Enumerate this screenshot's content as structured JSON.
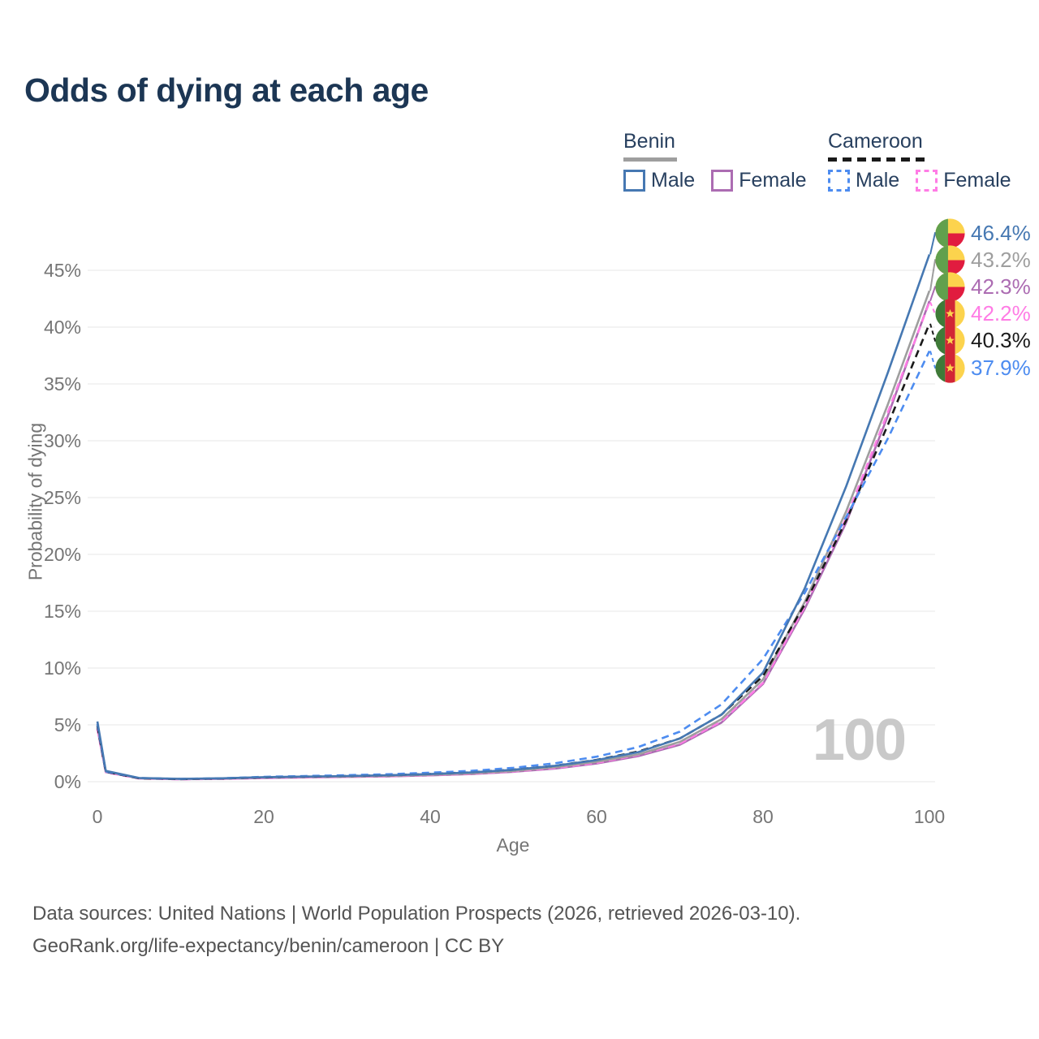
{
  "title": "Odds of dying at each age",
  "watermark": "100",
  "legend": {
    "benin": {
      "label": "Benin",
      "male": "Male",
      "female": "Female"
    },
    "cameroon": {
      "label": "Cameroon",
      "male": "Male",
      "female": "Female"
    }
  },
  "axes": {
    "x": {
      "label": "Age",
      "ticks": [
        0,
        20,
        40,
        60,
        80,
        100
      ],
      "range": [
        0,
        100
      ]
    },
    "y": {
      "label": "Probability of dying",
      "ticks": [
        "0%",
        "5%",
        "10%",
        "15%",
        "20%",
        "25%",
        "30%",
        "35%",
        "40%",
        "45%"
      ],
      "tick_values": [
        0,
        5,
        10,
        15,
        20,
        25,
        30,
        35,
        40,
        45
      ],
      "range": [
        0,
        48
      ]
    }
  },
  "footer": {
    "line1": "Data sources: United Nations | World Population Prospects (2026, retrieved 2026-03-10).",
    "line2": "GeoRank.org/life-expectancy/benin/cameroon | CC BY"
  },
  "colors": {
    "title_text": "#1c3654",
    "legend_text": "#28405f",
    "axis_text": "#757575",
    "gridline": "#e7e7e7",
    "watermark": "#c9c9c9",
    "footer_text": "#545454",
    "flag_benin": {
      "green": "#61a04d",
      "yellow": "#fcd34d",
      "red": "#e11c3f"
    },
    "flag_cameroon": {
      "green": "#3f7a38",
      "red": "#d22635",
      "yellow": "#fcd34d",
      "star": "#fcd34d"
    }
  },
  "chart_data": {
    "type": "line",
    "title": "Odds of dying at each age",
    "xlabel": "Age",
    "ylabel": "Probability of dying",
    "xlim": [
      0,
      100
    ],
    "ylim": [
      0,
      48
    ],
    "grid": "horizontal",
    "legend_position": "top-right",
    "x": [
      0,
      1,
      5,
      10,
      15,
      20,
      25,
      30,
      35,
      40,
      45,
      50,
      55,
      60,
      65,
      70,
      75,
      80,
      85,
      90,
      95,
      100
    ],
    "series": [
      {
        "id": "benin-male",
        "name": "Benin Male",
        "country": "Benin",
        "group": "Male",
        "style": "solid",
        "color": "#4678b2",
        "flag": "benin",
        "end_label": "46.4%",
        "end_value": 46.4,
        "values": [
          5.3,
          0.95,
          0.33,
          0.25,
          0.3,
          0.4,
          0.45,
          0.5,
          0.57,
          0.67,
          0.82,
          1.05,
          1.4,
          1.9,
          2.6,
          3.8,
          5.9,
          9.6,
          17.0,
          26.0,
          36.0,
          46.4
        ]
      },
      {
        "id": "benin-all",
        "name": "Benin All",
        "country": "Benin",
        "group": "All",
        "style": "solid",
        "color": "#9e9e9e",
        "flag": "benin",
        "end_label": "43.2%",
        "end_value": 43.2,
        "values": [
          5.0,
          0.9,
          0.31,
          0.24,
          0.28,
          0.37,
          0.42,
          0.46,
          0.52,
          0.61,
          0.74,
          0.95,
          1.28,
          1.75,
          2.4,
          3.5,
          5.5,
          9.0,
          15.8,
          23.8,
          33.2,
          43.2
        ]
      },
      {
        "id": "benin-female",
        "name": "Benin Female",
        "country": "Benin",
        "group": "Female",
        "style": "solid",
        "color": "#ac6cb2",
        "flag": "benin",
        "end_label": "42.3%",
        "end_value": 42.3,
        "values": [
          4.7,
          0.85,
          0.29,
          0.22,
          0.26,
          0.33,
          0.38,
          0.42,
          0.47,
          0.56,
          0.67,
          0.87,
          1.16,
          1.6,
          2.25,
          3.25,
          5.2,
          8.6,
          15.2,
          22.8,
          32.2,
          42.3
        ]
      },
      {
        "id": "cameroon-female",
        "name": "Cameroon Female",
        "country": "Cameroon",
        "group": "Female",
        "style": "dashed",
        "color": "#ff7ce5",
        "flag": "cameroon",
        "end_label": "42.2%",
        "end_value": 42.2,
        "values": [
          4.6,
          0.83,
          0.28,
          0.21,
          0.25,
          0.32,
          0.37,
          0.42,
          0.48,
          0.58,
          0.7,
          0.9,
          1.2,
          1.65,
          2.35,
          3.35,
          5.3,
          8.7,
          15.4,
          23.2,
          32.5,
          42.2
        ]
      },
      {
        "id": "cameroon-all",
        "name": "Cameroon All",
        "country": "Cameroon",
        "group": "All",
        "style": "dashed",
        "color": "#1a1a1a",
        "flag": "cameroon",
        "end_label": "40.3%",
        "end_value": 40.3,
        "values": [
          4.9,
          0.87,
          0.3,
          0.23,
          0.28,
          0.38,
          0.44,
          0.5,
          0.57,
          0.68,
          0.83,
          1.06,
          1.4,
          1.92,
          2.65,
          3.8,
          5.9,
          9.3,
          15.6,
          23.0,
          31.4,
          40.3
        ]
      },
      {
        "id": "cameroon-male",
        "name": "Cameroon Male",
        "country": "Cameroon",
        "group": "Male",
        "style": "dashed",
        "color": "#4d8cf0",
        "flag": "cameroon",
        "end_label": "37.9%",
        "end_value": 37.9,
        "values": [
          5.1,
          0.9,
          0.32,
          0.25,
          0.3,
          0.43,
          0.5,
          0.57,
          0.66,
          0.79,
          0.96,
          1.22,
          1.62,
          2.2,
          3.05,
          4.4,
          6.8,
          10.8,
          16.6,
          23.3,
          30.2,
          37.9
        ]
      }
    ]
  }
}
